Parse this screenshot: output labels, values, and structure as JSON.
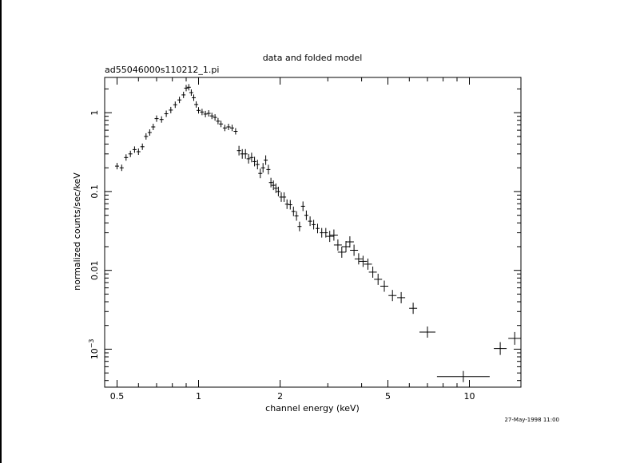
{
  "chart_data": {
    "type": "scatter",
    "title": "data and folded model",
    "subtitle": "ad55046000s110212_1.pi",
    "xlabel": "channel energy (keV)",
    "ylabel": "normalized counts/sec/keV",
    "x_scale": "log",
    "y_scale": "log",
    "xlim": [
      0.45,
      15.5
    ],
    "ylim": [
      0.00033,
      2.8
    ],
    "x_ticks": [
      {
        "value": 0.5,
        "label": "0.5"
      },
      {
        "value": 1,
        "label": "1"
      },
      {
        "value": 2,
        "label": "2"
      },
      {
        "value": 5,
        "label": "5"
      },
      {
        "value": 10,
        "label": "10"
      }
    ],
    "y_ticks": [
      {
        "value": 1,
        "label": "1"
      },
      {
        "value": 0.1,
        "label": "0.1"
      },
      {
        "value": 0.01,
        "label": "0.01"
      }
    ],
    "y_tick_special": {
      "value": 0.001,
      "mantissa": "10",
      "exponent": "−3"
    },
    "grid": false,
    "series": [
      {
        "points": [
          {
            "x": 0.5,
            "y": 0.21
          },
          {
            "x": 0.52,
            "y": 0.2
          },
          {
            "x": 0.54,
            "y": 0.27
          },
          {
            "x": 0.56,
            "y": 0.3
          },
          {
            "x": 0.58,
            "y": 0.34
          },
          {
            "x": 0.6,
            "y": 0.32
          },
          {
            "x": 0.62,
            "y": 0.37
          },
          {
            "x": 0.64,
            "y": 0.5
          },
          {
            "x": 0.66,
            "y": 0.56
          },
          {
            "x": 0.68,
            "y": 0.66
          },
          {
            "x": 0.7,
            "y": 0.84
          },
          {
            "x": 0.73,
            "y": 0.82
          },
          {
            "x": 0.76,
            "y": 0.97
          },
          {
            "x": 0.79,
            "y": 1.08
          },
          {
            "x": 0.82,
            "y": 1.26
          },
          {
            "x": 0.85,
            "y": 1.45
          },
          {
            "x": 0.88,
            "y": 1.68
          },
          {
            "x": 0.9,
            "y": 2.05
          },
          {
            "x": 0.92,
            "y": 2.1
          },
          {
            "x": 0.94,
            "y": 1.8
          },
          {
            "x": 0.96,
            "y": 1.55
          },
          {
            "x": 0.98,
            "y": 1.27
          },
          {
            "x": 1.0,
            "y": 1.07
          },
          {
            "x": 1.03,
            "y": 1.02
          },
          {
            "x": 1.06,
            "y": 0.96
          },
          {
            "x": 1.09,
            "y": 0.98
          },
          {
            "x": 1.12,
            "y": 0.91
          },
          {
            "x": 1.15,
            "y": 0.87
          },
          {
            "x": 1.18,
            "y": 0.78
          },
          {
            "x": 1.21,
            "y": 0.72
          },
          {
            "x": 1.25,
            "y": 0.64
          },
          {
            "x": 1.29,
            "y": 0.66
          },
          {
            "x": 1.33,
            "y": 0.64
          },
          {
            "x": 1.37,
            "y": 0.58
          },
          {
            "x": 1.41,
            "y": 0.33
          },
          {
            "x": 1.45,
            "y": 0.3
          },
          {
            "x": 1.49,
            "y": 0.3
          },
          {
            "x": 1.53,
            "y": 0.26
          },
          {
            "x": 1.57,
            "y": 0.27
          },
          {
            "x": 1.61,
            "y": 0.24
          },
          {
            "x": 1.65,
            "y": 0.22
          },
          {
            "x": 1.69,
            "y": 0.17
          },
          {
            "x": 1.73,
            "y": 0.2
          },
          {
            "x": 1.77,
            "y": 0.25
          },
          {
            "x": 1.81,
            "y": 0.19
          },
          {
            "x": 1.85,
            "y": 0.13
          },
          {
            "x": 1.89,
            "y": 0.12
          },
          {
            "x": 1.93,
            "y": 0.11
          },
          {
            "x": 1.97,
            "y": 0.1
          },
          {
            "x": 2.02,
            "y": 0.085
          },
          {
            "x": 2.07,
            "y": 0.085
          },
          {
            "x": 2.12,
            "y": 0.069
          },
          {
            "x": 2.18,
            "y": 0.068
          },
          {
            "x": 2.24,
            "y": 0.056
          },
          {
            "x": 2.3,
            "y": 0.049
          },
          {
            "x": 2.36,
            "y": 0.036
          },
          {
            "x": 2.43,
            "y": 0.065
          },
          {
            "x": 2.5,
            "y": 0.05
          },
          {
            "x": 2.58,
            "y": 0.042
          },
          {
            "x": 2.66,
            "y": 0.038
          },
          {
            "x": 2.75,
            "y": 0.034
          },
          {
            "x": 2.85,
            "y": 0.03
          },
          {
            "x": 2.95,
            "y": 0.03
          },
          {
            "x": 3.05,
            "y": 0.027
          },
          {
            "x": 3.16,
            "y": 0.028
          },
          {
            "x": 3.27,
            "y": 0.021
          },
          {
            "x": 3.38,
            "y": 0.017
          },
          {
            "x": 3.5,
            "y": 0.02
          },
          {
            "x": 3.62,
            "y": 0.023
          },
          {
            "x": 3.75,
            "y": 0.018
          },
          {
            "x": 3.9,
            "y": 0.014
          },
          {
            "x": 4.05,
            "y": 0.013
          },
          {
            "x": 4.22,
            "y": 0.012
          },
          {
            "x": 4.4,
            "y": 0.0095
          },
          {
            "x": 4.6,
            "y": 0.0077
          },
          {
            "x": 4.85,
            "y": 0.0063
          },
          {
            "x": 5.2,
            "y": 0.0048
          },
          {
            "x": 5.6,
            "y": 0.0045
          },
          {
            "x": 6.2,
            "y": 0.0033
          },
          {
            "x": 7.0,
            "y": 0.00165
          },
          {
            "x": 9.5,
            "y": 0.00045
          },
          {
            "x": 13.0,
            "y": 0.00102
          },
          {
            "x": 14.7,
            "y": 0.00137
          }
        ]
      }
    ]
  },
  "footer": {
    "timestamp": "27-May-1998 11:00"
  }
}
